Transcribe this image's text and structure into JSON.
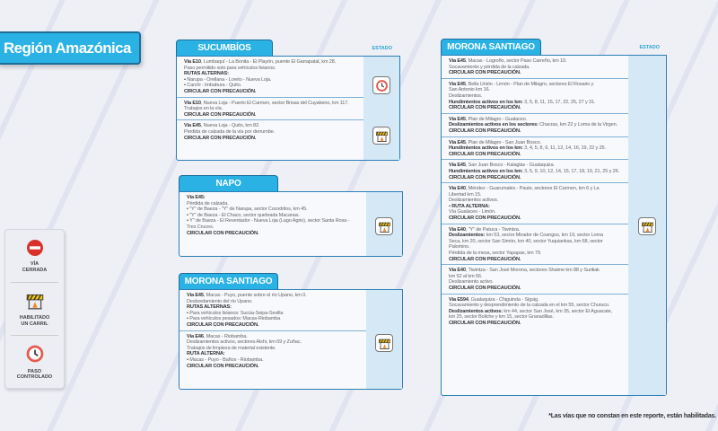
{
  "title": "Región Amazónica",
  "estado_label": "ESTADO",
  "footnote": "*Las vías que no constan en este reporte, están habilitadas.",
  "legend": [
    {
      "icon": "closed-road-icon",
      "label": "VÍA\nCERRADA"
    },
    {
      "icon": "barrier-icon",
      "label": "HABILITADO\nUN CARRIL"
    },
    {
      "icon": "clock-icon",
      "label": "PASO\nCONTROLADO"
    }
  ],
  "colors": {
    "accent": "#29b2e3",
    "border": "#1d6e9a",
    "closed": "#d9322b",
    "barrier": "#f2c318"
  },
  "panels": [
    {
      "name": "SUCUMBÍOS",
      "entries": [
        {
          "status": "clock-icon",
          "lines": [
            {
              "b": "Vía E10",
              "t": ", Lumbaquí - La Bonita - El Playón, puente El Garrapatal, km 28."
            },
            {
              "t": "Paso permitido solo para vehículos livianos."
            },
            {
              "b": "RUTAS ALTERNAS:"
            },
            {
              "bul": true,
              "t": "Narupa - Orellana - Loreto - Nueva Loja."
            },
            {
              "bul": true,
              "t": "Carchi - Imbabura - Quito."
            },
            {
              "b": "CIRCULAR CON PRECAUCIÓN."
            }
          ]
        },
        {
          "status": "barrier-icon",
          "lines": [
            {
              "b": "Vía E10",
              "t": ", Nueva Loja - Puerto El Carmen, sector Brisas del Cuyabeno, km 117."
            },
            {
              "t": "Trabajos en la vía."
            },
            {
              "b": "CIRCULAR CON PRECAUCIÓN."
            }
          ]
        },
        {
          "lines": [
            {
              "b": "Vía E45",
              "t": ", Nueva Loja - Quito, km 82."
            },
            {
              "t": "Perdida de calzada de la vía por derrumbe."
            },
            {
              "b": "CIRCULAR CON PRECAUCIÓN."
            }
          ]
        }
      ]
    },
    {
      "name": "NAPO",
      "entries": [
        {
          "status": "barrier-icon",
          "lines": [
            {
              "b": "Vía E45:"
            },
            {
              "t": "Pérdida de calzada."
            },
            {
              "bul": true,
              "t": "\"Y\" de Baeza - \"Y\" de Narupa, sector Cocodrilos, km 45."
            },
            {
              "bul": true,
              "t": "\"Y\" de Baeza - El Chaco, sector quebrada Macanas."
            },
            {
              "bul": true,
              "t": "Y\" de Baeza - El Reventador - Nueva Loja (Lago Agrio), sector Santa Rosa -"
            },
            {
              "t": "Tres Cruces."
            },
            {
              "b": "CIRCULAR CON PRECAUCIÓN."
            }
          ]
        }
      ]
    },
    {
      "name": "MORONA SANTIAGO",
      "entries": [
        {
          "status": "barrier-icon",
          "lines": [
            {
              "b": "Vía E45",
              "t": ", Macas - Puyo, puente sobre el río Upano, km 0."
            },
            {
              "t": "Desbordamiento del río Upano."
            },
            {
              "b": "RUTAS ALTERNAS:"
            },
            {
              "bul": true,
              "t": "Para vehículos livianos: Sucúa-Seipa-Sevilla"
            },
            {
              "bul": true,
              "t": "Para vehículos pesados: Macas-Riobamba"
            },
            {
              "b": "CIRCULAR CON PRECAUCIÓN."
            }
          ]
        },
        {
          "lines": [
            {
              "b": "Vía E46",
              "t": ", Macas - Riobamba."
            },
            {
              "t": "Deslizamientos activos, sectores Alshi, km 69 y Zuñac."
            },
            {
              "t": "Trabajos de limpieza de material existente."
            },
            {
              "b": "RUTA ALTERNA:"
            },
            {
              "bul": true,
              "t": "Macas - Puyo - Baños - Riobamba."
            },
            {
              "b": "CIRCULAR CON PRECAUCIÓN."
            }
          ]
        }
      ]
    },
    {
      "name": "MORONA SANTIAGO",
      "entries": [
        {
          "lines": [
            {
              "b": "Vía E45",
              "t": ", Macas - Logroño, sector Paso Carreño, km 10."
            },
            {
              "t": "Socavamiento y pérdida de la calzada."
            },
            {
              "b": "CIRCULAR CON PRECAUCIÓN."
            }
          ]
        },
        {
          "lines": [
            {
              "b": "Vía E45",
              "t": ", Bella Unión - Limón - Plan de Milagro, sectores El Rosario y"
            },
            {
              "t": "San Antonio km 16."
            },
            {
              "t": "Deslizamientos."
            },
            {
              "b": "Hundimientos activos en los km:",
              "t": " 3, 5, 8, 11, 15, 17, 22, 25, 27 y 31."
            },
            {
              "b": "CIRCULAR CON PRECAUCIÓN."
            }
          ]
        },
        {
          "lines": [
            {
              "b": "Vía E45",
              "t": ", Plan de Milagro - Gualaceo."
            },
            {
              "b": "Deslizamientos activos en los sectores:",
              "t": " Chacras, km 22 y Loma de la Virgen."
            },
            {
              "b": "CIRCULAR CON PRECAUCIÓN."
            }
          ]
        },
        {
          "lines": [
            {
              "b": "Vía E45",
              "t": ", Plan de Milagro - San Juan Bosco."
            },
            {
              "b": "Hundimientos activos en los km:",
              "t": " 3, 4, 5, 8, 9, 11, 12, 14, 16, 19, 22 y 25."
            },
            {
              "b": "CIRCULAR CON PRECAUCIÓN."
            }
          ]
        },
        {
          "lines": [
            {
              "b": "Vía E45",
              "t": ", San Juan Bosco - Kalaglas - Gualaquiza."
            },
            {
              "b": "Hundimientos activos en los km:",
              "t": " 3, 5, 9, 10, 12, 14, 15, 17, 18, 19, 21, 25 y 26."
            },
            {
              "b": "CIRCULAR CON PRECAUCIÓN."
            }
          ]
        },
        {
          "status": "barrier-icon",
          "lines": [
            {
              "b": "Vía E40",
              "t": ", Méndez - Guarumales - Paute, sectores El Carmen, km 6 y La"
            },
            {
              "t": "Libertad km 15."
            },
            {
              "t": "Deslizamientos activos."
            },
            {
              "bul": true,
              "b": "RUTA ALTERNA:"
            },
            {
              "t": "Vía Gualaceo - Limón."
            },
            {
              "b": "CIRCULAR CON PRECAUCIÓN."
            }
          ]
        },
        {
          "lines": [
            {
              "b": "Vía E40",
              "t": ", \"Y\" de Patuca - Tiwintza."
            },
            {
              "b": "Deslizamientos:",
              "t": " km 53, sector Mirador de Coangos, km 19, sector Loma"
            },
            {
              "t": "Seca, km 20, sector San Simón, km 40, sector Yuquiankas, km 68, sector"
            },
            {
              "t": "Palomino."
            },
            {
              "t": "Pérdida de la mesa, sector Yapapas, km 79."
            },
            {
              "b": "CIRCULAR CON PRECAUCIÓN."
            }
          ]
        },
        {
          "lines": [
            {
              "b": "Vía E40",
              "t": ", Tiwintza - San José Morona, sectores Shaime km 88 y Suritiak"
            },
            {
              "t": "km 52 al km 56."
            },
            {
              "t": "Deslizamiento activo."
            },
            {
              "b": "CIRCULAR CON PRECAUCIÓN."
            }
          ]
        },
        {
          "lines": [
            {
              "b": "Vía E594",
              "t": ", Gualaquiza - Chiguinda - Sígsig."
            },
            {
              "t": "Socavamiento y desprendimiento de la calzada en el km 55, sector Churuco."
            },
            {
              "b": "Deslizamientos activos:",
              "t": " km 44, sector San José, km 35, sector El Aguacate,"
            },
            {
              "t": "km 25, sector Boliche y km 15, sector Granadillas."
            },
            {
              "b": "CIRCULAR CON PRECAUCIÓN."
            }
          ]
        }
      ]
    }
  ]
}
